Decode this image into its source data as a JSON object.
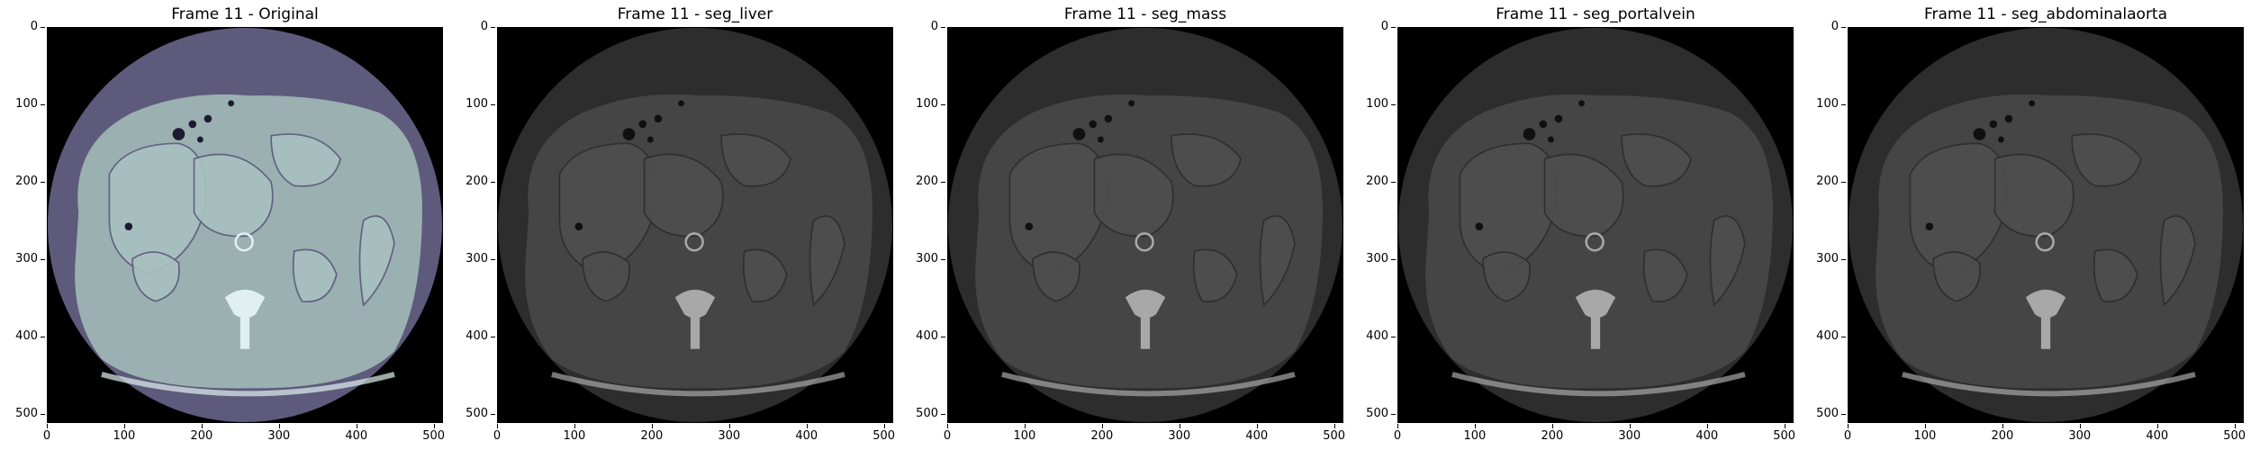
{
  "panels": [
    {
      "title": "Frame 11 - Original",
      "palette": "bone"
    },
    {
      "title": "Frame 11 - seg_liver",
      "palette": "gray"
    },
    {
      "title": "Frame 11 - seg_mass",
      "palette": "gray"
    },
    {
      "title": "Frame 11 - seg_portalvein",
      "palette": "gray"
    },
    {
      "title": "Frame 11 - seg_abdominalaorta",
      "palette": "gray"
    }
  ],
  "axes": {
    "x_ticks": [
      "0",
      "100",
      "200",
      "300",
      "400",
      "500"
    ],
    "y_ticks": [
      "0",
      "100",
      "200",
      "300",
      "400",
      "500"
    ],
    "xlim": [
      0,
      512
    ],
    "ylim": [
      512,
      0
    ]
  },
  "colors": {
    "bone": {
      "outer": "#5e5a7c",
      "body": "#9bb0b0",
      "organ": "#a9c0c0",
      "dark": "#1a1b33",
      "bright": "#e0f0f0"
    },
    "gray": {
      "outer": "#2d2d2d",
      "body": "#454545",
      "organ": "#4e4e4e",
      "dark": "#101010",
      "bright": "#a8a8a8"
    }
  }
}
